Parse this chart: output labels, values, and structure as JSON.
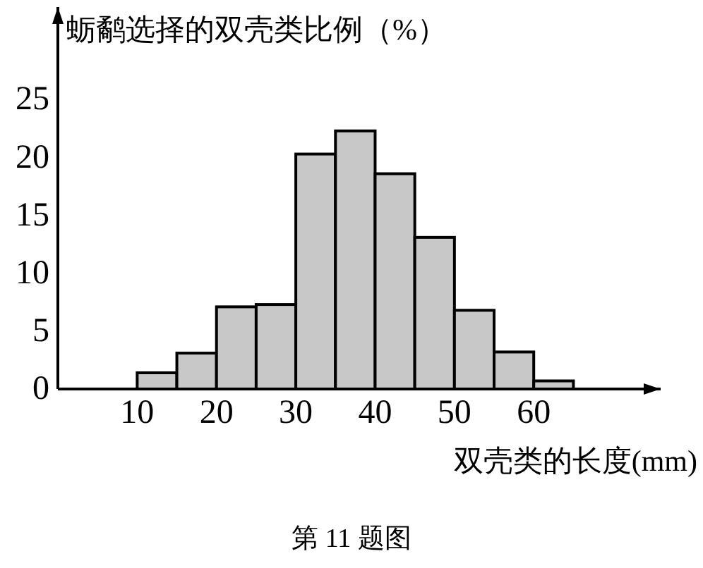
{
  "chart_data": {
    "type": "histogram",
    "ylabel": "蛎鹬选择的双壳类比例（%）",
    "xlabel": "双壳类的长度(mm)",
    "annotations": [
      "第 11 题图"
    ],
    "bins": [
      10,
      15,
      20,
      25,
      30,
      35,
      40,
      45,
      50,
      55,
      60,
      65
    ],
    "values": [
      1.4,
      3.1,
      7.1,
      7.3,
      20.3,
      22.3,
      18.6,
      13.1,
      6.8,
      3.2,
      0.7
    ],
    "color": "#c8c8c8",
    "xlim": [
      0,
      76
    ],
    "xticks": [
      10,
      20,
      30,
      40,
      50,
      60
    ],
    "ylim": [
      0,
      33
    ],
    "yticks": [
      0,
      5,
      10,
      15,
      20,
      25
    ],
    "grid": false
  }
}
